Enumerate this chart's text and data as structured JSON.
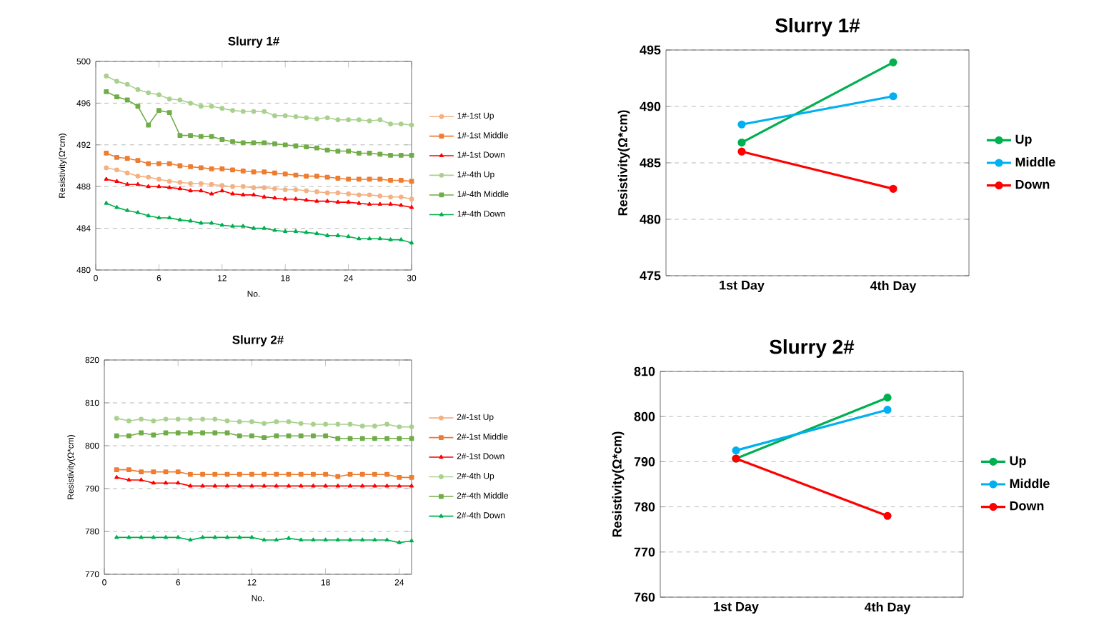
{
  "chart_data": [
    {
      "type": "line",
      "title": "Slurry 1#",
      "xlabel": "No.",
      "ylabel": "Resistivity(Ω*cm)",
      "xlim": [
        0,
        30
      ],
      "xticks": [
        0,
        6,
        12,
        18,
        24,
        30
      ],
      "ylim": [
        480,
        500
      ],
      "yticks": [
        480,
        484,
        488,
        492,
        496,
        500
      ],
      "grid": "y",
      "legend": "right",
      "x": [
        1,
        2,
        3,
        4,
        5,
        6,
        7,
        8,
        9,
        10,
        11,
        12,
        13,
        14,
        15,
        16,
        17,
        18,
        19,
        20,
        21,
        22,
        23,
        24,
        25,
        26,
        27,
        28,
        29,
        30
      ],
      "series": [
        {
          "name": "1#-1st Up",
          "color": "#f4b183",
          "marker": "circle",
          "values": [
            489.8,
            489.6,
            489.3,
            489.0,
            488.9,
            488.7,
            488.5,
            488.4,
            488.3,
            488.3,
            488.2,
            488.1,
            488.0,
            488.0,
            487.9,
            487.9,
            487.8,
            487.7,
            487.7,
            487.6,
            487.5,
            487.4,
            487.4,
            487.3,
            487.2,
            487.2,
            487.1,
            487.0,
            487.0,
            486.8
          ]
        },
        {
          "name": "1#-1st Middle",
          "color": "#ed7d31",
          "marker": "square",
          "values": [
            491.2,
            490.8,
            490.7,
            490.5,
            490.2,
            490.2,
            490.2,
            490.0,
            489.9,
            489.8,
            489.7,
            489.7,
            489.6,
            489.5,
            489.4,
            489.4,
            489.3,
            489.2,
            489.1,
            489.0,
            489.0,
            488.9,
            488.8,
            488.7,
            488.7,
            488.7,
            488.7,
            488.6,
            488.6,
            488.5
          ]
        },
        {
          "name": "1#-1st Down",
          "color": "#ff0000",
          "marker": "triangle",
          "values": [
            488.7,
            488.5,
            488.2,
            488.2,
            488.0,
            488.0,
            487.9,
            487.8,
            487.6,
            487.6,
            487.3,
            487.6,
            487.3,
            487.2,
            487.2,
            487.0,
            486.9,
            486.8,
            486.8,
            486.7,
            486.6,
            486.6,
            486.5,
            486.5,
            486.4,
            486.3,
            486.3,
            486.3,
            486.2,
            486.0
          ]
        },
        {
          "name": "1#-4th Up",
          "color": "#a9d18e",
          "marker": "circle",
          "values": [
            498.6,
            498.1,
            497.8,
            497.3,
            497.0,
            496.8,
            496.4,
            496.3,
            496.0,
            495.7,
            495.7,
            495.5,
            495.3,
            495.2,
            495.2,
            495.2,
            494.8,
            494.8,
            494.7,
            494.6,
            494.5,
            494.6,
            494.4,
            494.4,
            494.4,
            494.3,
            494.4,
            494.0,
            494.0,
            493.9
          ]
        },
        {
          "name": "1#-4th Middle",
          "color": "#70ad47",
          "marker": "square",
          "values": [
            497.1,
            496.6,
            496.3,
            495.7,
            493.9,
            495.3,
            495.1,
            492.9,
            492.9,
            492.8,
            492.8,
            492.5,
            492.3,
            492.2,
            492.2,
            492.2,
            492.1,
            492.0,
            491.9,
            491.8,
            491.7,
            491.5,
            491.4,
            491.4,
            491.2,
            491.2,
            491.1,
            491.0,
            491.0,
            491.0
          ]
        },
        {
          "name": "1#-4th Down",
          "color": "#00b050",
          "marker": "triangle",
          "values": [
            486.4,
            486.0,
            485.7,
            485.5,
            485.2,
            485.0,
            485.0,
            484.8,
            484.7,
            484.5,
            484.5,
            484.3,
            484.2,
            484.2,
            484.0,
            484.0,
            483.8,
            483.7,
            483.7,
            483.6,
            483.5,
            483.3,
            483.3,
            483.2,
            483.0,
            483.0,
            483.0,
            482.9,
            482.9,
            482.6
          ]
        }
      ]
    },
    {
      "type": "line",
      "title": "Slurry 1#",
      "ylabel": "Resistivity(Ω*cm)",
      "categories": [
        "1st Day",
        "4th Day"
      ],
      "ylim": [
        475,
        495
      ],
      "yticks": [
        475,
        480,
        485,
        490,
        495
      ],
      "grid": "y",
      "legend": "right",
      "series": [
        {
          "name": "Up",
          "color": "#00b050",
          "marker": "circle",
          "values": [
            486.8,
            493.9
          ]
        },
        {
          "name": "Middle",
          "color": "#00b0f0",
          "marker": "circle",
          "values": [
            488.4,
            490.9
          ]
        },
        {
          "name": "Down",
          "color": "#ff0000",
          "marker": "circle",
          "values": [
            486.0,
            482.7
          ]
        }
      ]
    },
    {
      "type": "line",
      "title": "Slurry 2#",
      "xlabel": "No.",
      "ylabel": "Resistivity(Ω*cm)",
      "xlim": [
        0,
        25
      ],
      "xticks": [
        0,
        6,
        12,
        18,
        24
      ],
      "ylim": [
        770,
        820
      ],
      "yticks": [
        770,
        780,
        790,
        800,
        810,
        820
      ],
      "grid": "y",
      "legend": "right",
      "x": [
        1,
        2,
        3,
        4,
        5,
        6,
        7,
        8,
        9,
        10,
        11,
        12,
        13,
        14,
        15,
        16,
        17,
        18,
        19,
        20,
        21,
        22,
        23,
        24,
        25
      ],
      "series": [
        {
          "name": "2#-1st Up",
          "color": "#f4b183",
          "marker": "circle",
          "values": [
            null,
            null,
            null,
            null,
            null,
            null,
            null,
            null,
            null,
            null,
            null,
            null,
            null,
            null,
            null,
            null,
            null,
            null,
            null,
            null,
            null,
            null,
            null,
            null,
            null
          ]
        },
        {
          "name": "2#-1st Middle",
          "color": "#ed7d31",
          "marker": "square",
          "values": [
            794.4,
            794.4,
            793.9,
            793.9,
            793.9,
            793.9,
            793.3,
            793.3,
            793.3,
            793.3,
            793.3,
            793.3,
            793.3,
            793.3,
            793.3,
            793.3,
            793.3,
            793.3,
            792.8,
            793.3,
            793.3,
            793.3,
            793.3,
            792.6,
            792.6
          ]
        },
        {
          "name": "2#-1st Down",
          "color": "#ff0000",
          "marker": "triangle",
          "values": [
            792.6,
            792.0,
            792.0,
            791.3,
            791.3,
            791.3,
            790.6,
            790.6,
            790.6,
            790.6,
            790.6,
            790.6,
            790.6,
            790.6,
            790.6,
            790.6,
            790.6,
            790.6,
            790.6,
            790.6,
            790.6,
            790.6,
            790.6,
            790.6,
            790.6
          ]
        },
        {
          "name": "2#-4th Up",
          "color": "#a9d18e",
          "marker": "circle",
          "values": [
            806.4,
            805.8,
            806.2,
            805.8,
            806.2,
            806.2,
            806.2,
            806.2,
            806.2,
            805.8,
            805.6,
            805.6,
            805.2,
            805.6,
            805.6,
            805.2,
            805.0,
            805.0,
            805.0,
            805.0,
            804.6,
            804.6,
            805.0,
            804.4,
            804.4
          ]
        },
        {
          "name": "2#-4th Middle",
          "color": "#70ad47",
          "marker": "square",
          "values": [
            802.3,
            802.3,
            803.0,
            802.5,
            803.0,
            803.0,
            803.0,
            803.0,
            803.0,
            803.0,
            802.3,
            802.3,
            801.9,
            802.3,
            802.3,
            802.3,
            802.3,
            802.3,
            801.7,
            801.7,
            801.7,
            801.7,
            801.7,
            801.7,
            801.7
          ]
        },
        {
          "name": "2#-4th Down",
          "color": "#00b050",
          "marker": "triangle",
          "values": [
            778.6,
            778.6,
            778.6,
            778.6,
            778.6,
            778.6,
            778.0,
            778.6,
            778.6,
            778.6,
            778.6,
            778.6,
            778.0,
            778.0,
            778.4,
            778.0,
            778.0,
            778.0,
            778.0,
            778.0,
            778.0,
            778.0,
            778.0,
            777.4,
            777.8
          ]
        }
      ]
    },
    {
      "type": "line",
      "title": "Slurry 2#",
      "ylabel": "Resistivity(Ω*cm)",
      "categories": [
        "1st Day",
        "4th Day"
      ],
      "ylim": [
        760,
        810
      ],
      "yticks": [
        760,
        770,
        780,
        790,
        800,
        810
      ],
      "grid": "y",
      "legend": "right",
      "series": [
        {
          "name": "Up",
          "color": "#00b050",
          "marker": "circle",
          "values": [
            790.7,
            804.2
          ]
        },
        {
          "name": "Middle",
          "color": "#00b0f0",
          "marker": "circle",
          "values": [
            792.5,
            801.5
          ]
        },
        {
          "name": "Down",
          "color": "#ff0000",
          "marker": "circle",
          "values": [
            790.7,
            778.0
          ]
        }
      ]
    }
  ]
}
